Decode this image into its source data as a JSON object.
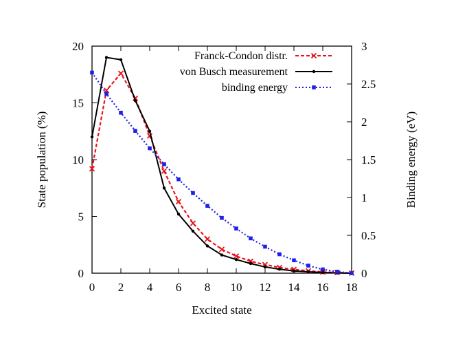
{
  "chart_data": {
    "type": "line",
    "xlabel": "Excited state",
    "ylabel": "State population (%)",
    "y2label": "Binding energy (eV)",
    "xlim": [
      0,
      18
    ],
    "ylim": [
      0,
      20
    ],
    "y2lim": [
      0,
      3
    ],
    "x_ticks": [
      "0",
      "2",
      "4",
      "6",
      "8",
      "10",
      "12",
      "14",
      "16",
      "18"
    ],
    "y_ticks": [
      "0",
      "5",
      "10",
      "15",
      "20"
    ],
    "y2_ticks": [
      "0",
      "0.5",
      "1",
      "1.5",
      "2",
      "2.5",
      "3"
    ],
    "legend_position": "top-right",
    "grid": false,
    "series": [
      {
        "name": "Franck-Condon distr.",
        "axis": "left",
        "color": "#e8141b",
        "line_style": "dashed",
        "marker": "x",
        "x": [
          0,
          1,
          2,
          3,
          4,
          5,
          6,
          7,
          8,
          9,
          10,
          11,
          12,
          13,
          14,
          15,
          16,
          17,
          18
        ],
        "values": [
          9.2,
          16.1,
          17.6,
          15.4,
          12.1,
          9.0,
          6.3,
          4.4,
          3.0,
          2.1,
          1.5,
          1.05,
          0.75,
          0.5,
          0.33,
          0.2,
          0.11,
          0.05,
          0.01
        ]
      },
      {
        "name": "von Busch measurement",
        "axis": "left",
        "color": "#000000",
        "line_style": "solid",
        "marker": "dot",
        "x": [
          0,
          1,
          2,
          3,
          4,
          5,
          6,
          7,
          8,
          9,
          10,
          11,
          12,
          13,
          14,
          15,
          16,
          17,
          18
        ],
        "values": [
          12.0,
          19.0,
          18.8,
          15.2,
          12.5,
          7.5,
          5.2,
          3.7,
          2.4,
          1.6,
          1.2,
          0.85,
          0.55,
          0.35,
          0.2,
          0.12,
          0.06,
          0.02,
          0.0
        ]
      },
      {
        "name": "binding energy",
        "axis": "right",
        "color": "#1f1fe6",
        "line_style": "dotted",
        "marker": "square",
        "x": [
          0,
          1,
          2,
          3,
          4,
          5,
          6,
          7,
          8,
          9,
          10,
          11,
          12,
          13,
          14,
          15,
          16,
          17,
          18
        ],
        "values": [
          2.65,
          2.37,
          2.12,
          1.88,
          1.65,
          1.44,
          1.24,
          1.06,
          0.89,
          0.73,
          0.59,
          0.46,
          0.35,
          0.25,
          0.17,
          0.1,
          0.05,
          0.02,
          0.0
        ]
      }
    ]
  }
}
